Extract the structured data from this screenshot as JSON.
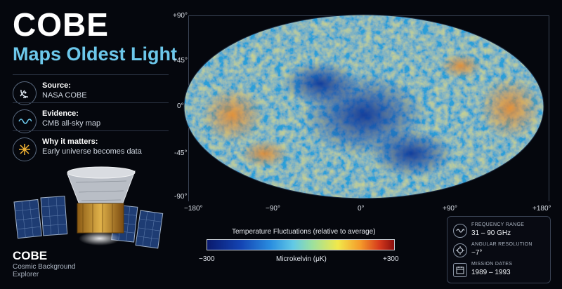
{
  "header": {
    "title": "COBE",
    "subtitle": "Maps Oldest Light"
  },
  "info": [
    {
      "label": "Source:",
      "value": "NASA COBE",
      "icon": "satellite-dish-icon"
    },
    {
      "label": "Evidence:",
      "value": "CMB all-sky map",
      "icon": "wave-icon"
    },
    {
      "label": "Why it matters:",
      "value": "Early universe becomes data",
      "icon": "starburst-icon"
    }
  ],
  "map": {
    "lat_ticks": [
      "+90°",
      "+45°",
      "0°",
      "-45°",
      "-90°"
    ],
    "lon_ticks": [
      "−180°",
      "−90°",
      "0°",
      "+90°",
      "+180°"
    ]
  },
  "colorbar": {
    "title": "Temperature Fluctuations  (relative to average)",
    "unit": "Microkelvin (μK)",
    "min": "−300",
    "max": "+300"
  },
  "satellite": {
    "name": "COBE",
    "full_name": "Cosmic Background Explorer"
  },
  "specs": [
    {
      "label": "FREQUENCY RANGE",
      "value": "31 – 90 GHz",
      "icon": "wave-icon"
    },
    {
      "label": "ANGULAR RESOLUTION",
      "value": "~7°",
      "icon": "target-icon"
    },
    {
      "label": "MISSION DATES",
      "value": "1989 – 1993",
      "icon": "calendar-icon"
    }
  ],
  "colors": {
    "accent": "#6cc7ea",
    "background": "#05070d"
  }
}
